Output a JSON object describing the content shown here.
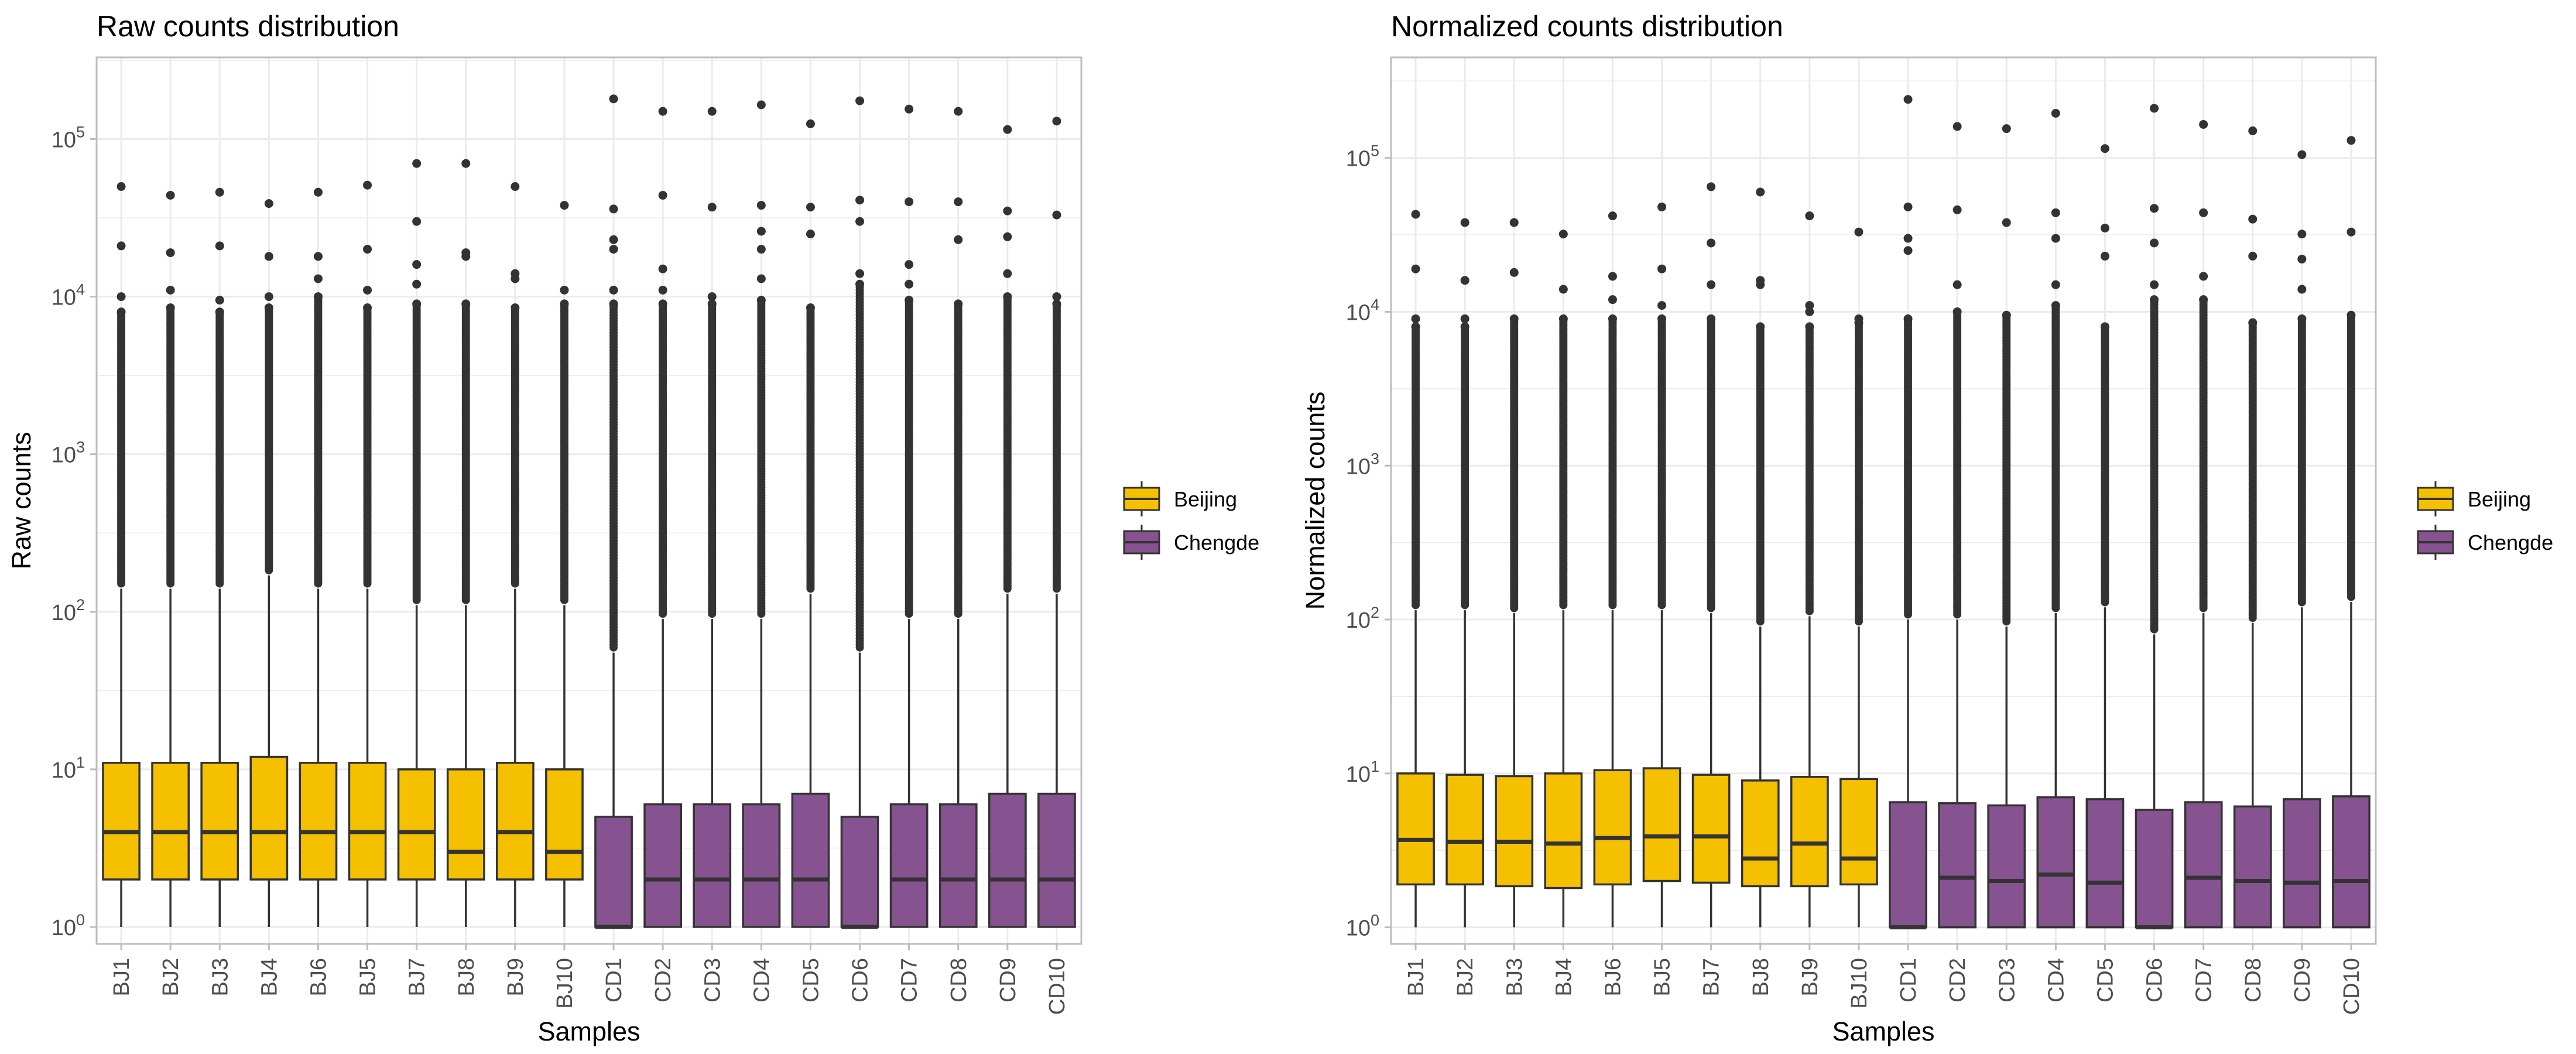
{
  "chart_data": [
    {
      "type": "boxplot",
      "title": "Raw counts distribution",
      "xlabel": "Samples",
      "ylabel": "Raw counts",
      "y_scale": "log10",
      "ylim": [
        0.78,
        330000
      ],
      "y_ticks": [
        1,
        10,
        100,
        1000,
        10000,
        100000
      ],
      "y_tick_labels": [
        {
          "base": "10",
          "exp": "0"
        },
        {
          "base": "10",
          "exp": "1"
        },
        {
          "base": "10",
          "exp": "2"
        },
        {
          "base": "10",
          "exp": "3"
        },
        {
          "base": "10",
          "exp": "4"
        },
        {
          "base": "10",
          "exp": "5"
        }
      ],
      "grid": true,
      "legend": {
        "placement": "right",
        "entries": [
          "Beijing",
          "Chengde"
        ]
      },
      "categories": [
        "BJ1",
        "BJ2",
        "BJ3",
        "BJ4",
        "BJ6",
        "BJ5",
        "BJ7",
        "BJ8",
        "BJ9",
        "BJ10",
        "CD1",
        "CD2",
        "CD3",
        "CD4",
        "CD5",
        "CD6",
        "CD7",
        "CD8",
        "CD9",
        "CD10"
      ],
      "groups": [
        "Beijing",
        "Beijing",
        "Beijing",
        "Beijing",
        "Beijing",
        "Beijing",
        "Beijing",
        "Beijing",
        "Beijing",
        "Beijing",
        "Chengde",
        "Chengde",
        "Chengde",
        "Chengde",
        "Chengde",
        "Chengde",
        "Chengde",
        "Chengde",
        "Chengde",
        "Chengde"
      ],
      "boxes": [
        {
          "lower": 1,
          "q1": 2,
          "median": 4,
          "q3": 11,
          "upper": 140,
          "outliers": [
            50000,
            21000,
            10000,
            8000
          ]
        },
        {
          "lower": 1,
          "q1": 2,
          "median": 4,
          "q3": 11,
          "upper": 140,
          "outliers": [
            44000,
            19000,
            11000,
            8500
          ]
        },
        {
          "lower": 1,
          "q1": 2,
          "median": 4,
          "q3": 11,
          "upper": 140,
          "outliers": [
            46000,
            21000,
            9500,
            8000
          ]
        },
        {
          "lower": 1,
          "q1": 2,
          "median": 4,
          "q3": 12,
          "upper": 170,
          "outliers": [
            39000,
            18000,
            10000,
            8500
          ]
        },
        {
          "lower": 1,
          "q1": 2,
          "median": 4,
          "q3": 11,
          "upper": 140,
          "outliers": [
            46000,
            18000,
            13000,
            10000
          ]
        },
        {
          "lower": 1,
          "q1": 2,
          "median": 4,
          "q3": 11,
          "upper": 140,
          "outliers": [
            51000,
            20000,
            11000,
            8500
          ]
        },
        {
          "lower": 1,
          "q1": 2,
          "median": 4,
          "q3": 10,
          "upper": 110,
          "outliers": [
            70000,
            30000,
            16000,
            12000,
            9000
          ]
        },
        {
          "lower": 1,
          "q1": 2,
          "median": 3,
          "q3": 10,
          "upper": 110,
          "outliers": [
            70000,
            19000,
            18000,
            9000
          ]
        },
        {
          "lower": 1,
          "q1": 2,
          "median": 4,
          "q3": 11,
          "upper": 140,
          "outliers": [
            50000,
            14000,
            13000,
            8500
          ]
        },
        {
          "lower": 1,
          "q1": 2,
          "median": 3,
          "q3": 10,
          "upper": 110,
          "outliers": [
            38000,
            11000,
            9000
          ]
        },
        {
          "lower": 1,
          "q1": 1,
          "median": 1,
          "q3": 5,
          "upper": 55,
          "outliers": [
            180000,
            36000,
            23000,
            20000,
            11000,
            9000
          ]
        },
        {
          "lower": 1,
          "q1": 1,
          "median": 2,
          "q3": 6,
          "upper": 90,
          "outliers": [
            150000,
            44000,
            15000,
            11000,
            9000
          ]
        },
        {
          "lower": 1,
          "q1": 1,
          "median": 2,
          "q3": 6,
          "upper": 90,
          "outliers": [
            150000,
            37000,
            10000,
            9000
          ]
        },
        {
          "lower": 1,
          "q1": 1,
          "median": 2,
          "q3": 6,
          "upper": 90,
          "outliers": [
            165000,
            38000,
            26000,
            20000,
            13000,
            9500
          ]
        },
        {
          "lower": 1,
          "q1": 1,
          "median": 2,
          "q3": 7,
          "upper": 130,
          "outliers": [
            125000,
            37000,
            25000,
            8500
          ]
        },
        {
          "lower": 1,
          "q1": 1,
          "median": 1,
          "q3": 5,
          "upper": 55,
          "outliers": [
            175000,
            41000,
            30000,
            14000,
            12000
          ]
        },
        {
          "lower": 1,
          "q1": 1,
          "median": 2,
          "q3": 6,
          "upper": 90,
          "outliers": [
            155000,
            40000,
            16000,
            12000,
            9500
          ]
        },
        {
          "lower": 1,
          "q1": 1,
          "median": 2,
          "q3": 6,
          "upper": 90,
          "outliers": [
            150000,
            40000,
            23000,
            9000
          ]
        },
        {
          "lower": 1,
          "q1": 1,
          "median": 2,
          "q3": 7,
          "upper": 130,
          "outliers": [
            115000,
            35000,
            24000,
            14000,
            10000
          ]
        },
        {
          "lower": 1,
          "q1": 1,
          "median": 2,
          "q3": 7,
          "upper": 130,
          "outliers": [
            130000,
            33000,
            10000,
            9000
          ]
        }
      ]
    },
    {
      "type": "boxplot",
      "title": "Normalized counts distribution",
      "xlabel": "Samples",
      "ylabel": "Normalized counts",
      "y_scale": "log10",
      "ylim": [
        0.78,
        450000
      ],
      "y_ticks": [
        1,
        10,
        100,
        1000,
        10000,
        100000
      ],
      "y_tick_labels": [
        {
          "base": "10",
          "exp": "0"
        },
        {
          "base": "10",
          "exp": "1"
        },
        {
          "base": "10",
          "exp": "2"
        },
        {
          "base": "10",
          "exp": "3"
        },
        {
          "base": "10",
          "exp": "4"
        },
        {
          "base": "10",
          "exp": "5"
        }
      ],
      "grid": true,
      "legend": {
        "placement": "right",
        "entries": [
          "Beijing",
          "Chengde"
        ]
      },
      "categories": [
        "BJ1",
        "BJ2",
        "BJ3",
        "BJ4",
        "BJ6",
        "BJ5",
        "BJ7",
        "BJ8",
        "BJ9",
        "BJ10",
        "CD1",
        "CD2",
        "CD3",
        "CD4",
        "CD5",
        "CD6",
        "CD7",
        "CD8",
        "CD9",
        "CD10"
      ],
      "groups": [
        "Beijing",
        "Beijing",
        "Beijing",
        "Beijing",
        "Beijing",
        "Beijing",
        "Beijing",
        "Beijing",
        "Beijing",
        "Beijing",
        "Chengde",
        "Chengde",
        "Chengde",
        "Chengde",
        "Chengde",
        "Chengde",
        "Chengde",
        "Chengde",
        "Chengde",
        "Chengde"
      ],
      "boxes": [
        {
          "lower": 1,
          "q1": 1.9,
          "median": 3.7,
          "q3": 10,
          "upper": 115,
          "outliers": [
            43000,
            19000,
            9000,
            8000
          ]
        },
        {
          "lower": 1,
          "q1": 1.9,
          "median": 3.6,
          "q3": 9.8,
          "upper": 115,
          "outliers": [
            38000,
            16000,
            9000,
            8000
          ]
        },
        {
          "lower": 1,
          "q1": 1.85,
          "median": 3.6,
          "q3": 9.6,
          "upper": 110,
          "outliers": [
            38000,
            18000,
            9000
          ]
        },
        {
          "lower": 1,
          "q1": 1.8,
          "median": 3.5,
          "q3": 10,
          "upper": 115,
          "outliers": [
            32000,
            14000,
            9000
          ]
        },
        {
          "lower": 1,
          "q1": 1.9,
          "median": 3.8,
          "q3": 10.5,
          "upper": 115,
          "outliers": [
            42000,
            17000,
            12000,
            9000
          ]
        },
        {
          "lower": 1,
          "q1": 2,
          "median": 3.9,
          "q3": 10.8,
          "upper": 115,
          "outliers": [
            48000,
            19000,
            11000,
            9000
          ]
        },
        {
          "lower": 1,
          "q1": 1.95,
          "median": 3.9,
          "q3": 9.8,
          "upper": 110,
          "outliers": [
            65000,
            28000,
            15000,
            9000
          ]
        },
        {
          "lower": 1,
          "q1": 1.85,
          "median": 2.8,
          "q3": 9,
          "upper": 90,
          "outliers": [
            60000,
            16000,
            15000,
            8000
          ]
        },
        {
          "lower": 1,
          "q1": 1.85,
          "median": 3.5,
          "q3": 9.5,
          "upper": 105,
          "outliers": [
            42000,
            11000,
            10000,
            8000
          ]
        },
        {
          "lower": 1,
          "q1": 1.9,
          "median": 2.8,
          "q3": 9.2,
          "upper": 90,
          "outliers": [
            33000,
            9000,
            8500
          ]
        },
        {
          "lower": 1,
          "q1": 1,
          "median": 1,
          "q3": 6.5,
          "upper": 100,
          "outliers": [
            240000,
            48000,
            30000,
            25000,
            9000
          ]
        },
        {
          "lower": 1,
          "q1": 1,
          "median": 2.1,
          "q3": 6.4,
          "upper": 100,
          "outliers": [
            160000,
            46000,
            15000,
            10000
          ]
        },
        {
          "lower": 1,
          "q1": 1,
          "median": 2,
          "q3": 6.2,
          "upper": 90,
          "outliers": [
            155000,
            38000,
            9500
          ]
        },
        {
          "lower": 1,
          "q1": 1,
          "median": 2.2,
          "q3": 7,
          "upper": 110,
          "outliers": [
            195000,
            44000,
            30000,
            15000,
            11000
          ]
        },
        {
          "lower": 1,
          "q1": 1,
          "median": 1.95,
          "q3": 6.8,
          "upper": 120,
          "outliers": [
            115000,
            35000,
            23000,
            8000
          ]
        },
        {
          "lower": 1,
          "q1": 1,
          "median": 1,
          "q3": 5.8,
          "upper": 80,
          "outliers": [
            210000,
            47000,
            28000,
            15000,
            12000
          ]
        },
        {
          "lower": 1,
          "q1": 1,
          "median": 2.1,
          "q3": 6.5,
          "upper": 110,
          "outliers": [
            165000,
            44000,
            17000,
            12000
          ]
        },
        {
          "lower": 1,
          "q1": 1,
          "median": 2,
          "q3": 6.1,
          "upper": 95,
          "outliers": [
            150000,
            40000,
            23000,
            8500
          ]
        },
        {
          "lower": 1,
          "q1": 1,
          "median": 1.95,
          "q3": 6.8,
          "upper": 120,
          "outliers": [
            105000,
            32000,
            22000,
            14000,
            9000
          ]
        },
        {
          "lower": 1,
          "q1": 1,
          "median": 2,
          "q3": 7.1,
          "upper": 130,
          "outliers": [
            130000,
            33000,
            9500
          ]
        }
      ]
    }
  ],
  "colors": {
    "Beijing": "#F5C000",
    "Chengde": "#86528F",
    "box_line": "#333333",
    "point": "#333333",
    "grid": "#EBEBEB",
    "panel_border": "#BDBDBD",
    "axis_text": "#4D4D4D"
  }
}
